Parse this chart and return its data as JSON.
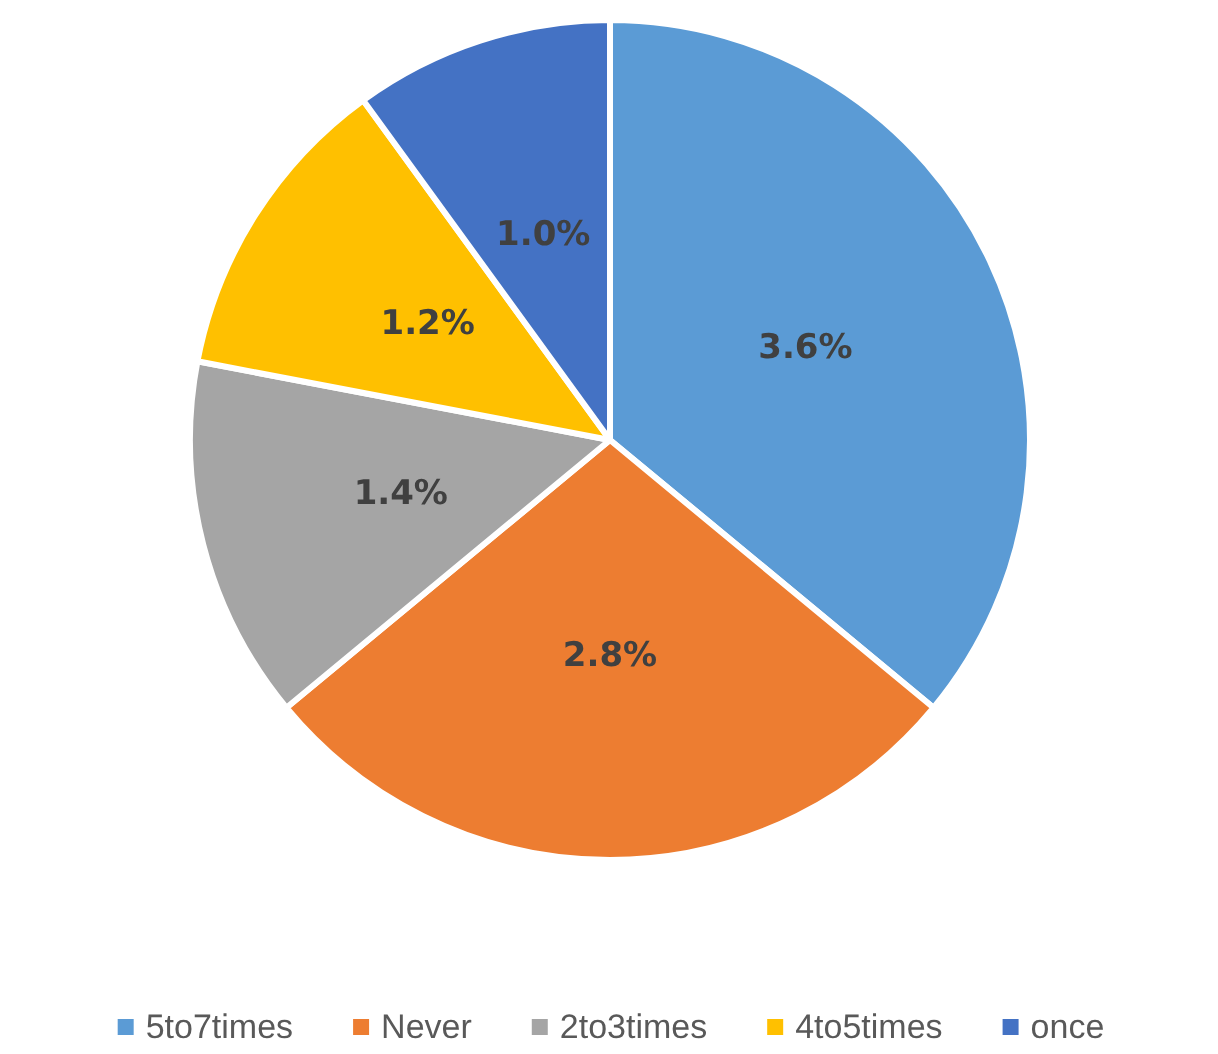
{
  "chart_data": {
    "type": "pie",
    "categories": [
      "5to7times",
      "Never",
      "2to3times",
      "4to5times",
      "once"
    ],
    "values": [
      3.6,
      2.8,
      1.4,
      1.2,
      1.0
    ],
    "value_labels": [
      "3.6%",
      "2.8%",
      "1.4%",
      "1.2%",
      "1.0%"
    ],
    "colors": [
      "#5b9bd5",
      "#ed7d31",
      "#a5a5a5",
      "#ffc000",
      "#4472c4"
    ],
    "legend": "bottom"
  }
}
